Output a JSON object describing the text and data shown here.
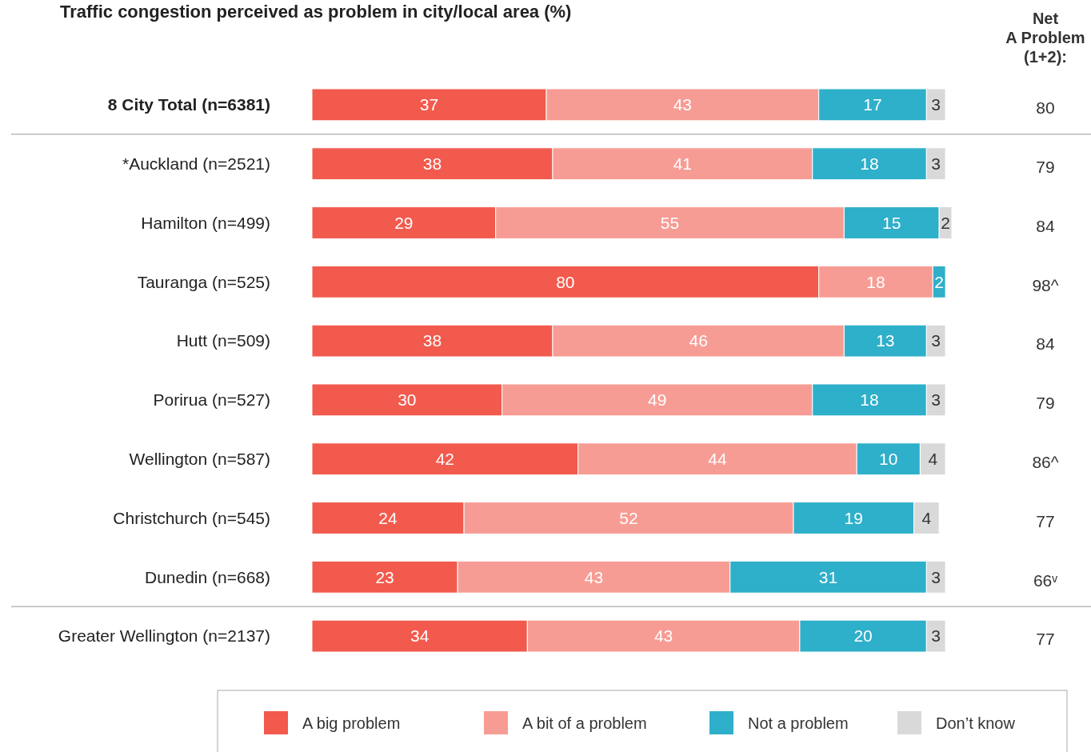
{
  "chart_data": {
    "type": "bar",
    "orientation": "horizontal",
    "stacked": true,
    "data_labels": true,
    "title": "Traffic congestion perceived as problem in city/local area (%)",
    "categories": [
      "8 City Total (n=6381)",
      "*Auckland (n=2521)",
      "Hamilton (n=499)",
      "Tauranga (n=525)",
      "Hutt (n=509)",
      "Porirua (n=527)",
      "Wellington (n=587)",
      "Christchurch (n=545)",
      "Dunedin (n=668)",
      "Greater Wellington (n=2137)"
    ],
    "xlim": [
      0,
      101
    ],
    "legend": "bottom",
    "series": [
      {
        "name": "A big problem",
        "color": "#f25a4d",
        "values": [
          37,
          38,
          29,
          80,
          38,
          30,
          42,
          24,
          23,
          34
        ]
      },
      {
        "name": "A bit of a problem",
        "color": "#f79c94",
        "values": [
          43,
          41,
          55,
          18,
          46,
          49,
          44,
          52,
          43,
          43
        ]
      },
      {
        "name": "Not a problem",
        "color": "#2eafca",
        "values": [
          17,
          18,
          15,
          2,
          13,
          18,
          10,
          19,
          31,
          20
        ]
      },
      {
        "name": "Don’t know",
        "color": "#d9d9d9",
        "values": [
          3,
          3,
          2,
          null,
          3,
          3,
          4,
          4,
          3,
          3
        ]
      }
    ],
    "annotations": [
      "Net A Problem (1+2):",
      "80",
      "79",
      "84",
      "98^",
      "84",
      "79",
      "86^",
      "77",
      "66ᵛ",
      "77"
    ]
  }
}
